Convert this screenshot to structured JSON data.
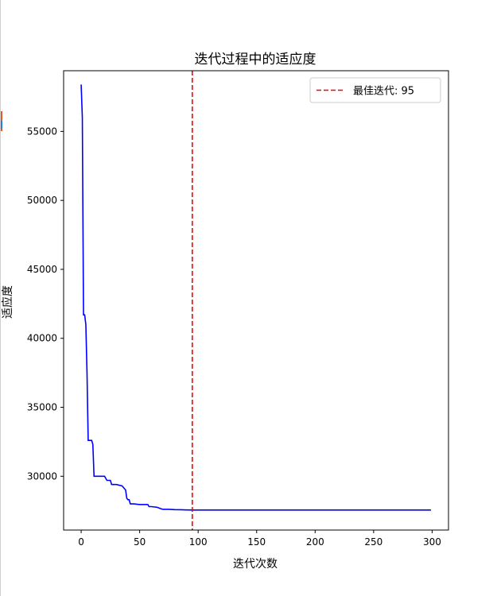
{
  "chart_data": {
    "type": "line",
    "title": "迭代过程中的适应度",
    "xlabel": "迭代次数",
    "ylabel": "适应度",
    "xlim": [
      -15,
      314
    ],
    "ylim": [
      26100,
      59400
    ],
    "x_ticks": [
      0,
      50,
      100,
      150,
      200,
      250,
      300
    ],
    "x_tick_labels": [
      "0",
      "50",
      "100",
      "150",
      "200",
      "250",
      "300"
    ],
    "y_ticks": [
      30000,
      35000,
      40000,
      45000,
      50000,
      55000
    ],
    "y_tick_labels": [
      "30000",
      "35000",
      "40000",
      "45000",
      "50000",
      "55000"
    ],
    "series": [
      {
        "color": "#0000ff",
        "x": [
          0,
          1,
          2,
          3,
          4,
          5,
          6,
          7,
          8,
          9,
          10,
          11,
          12,
          15,
          20,
          22,
          24,
          25,
          26,
          27,
          30,
          35,
          38,
          39,
          40,
          41,
          42,
          43,
          45,
          50,
          55,
          57,
          58,
          60,
          65,
          68,
          70,
          75,
          80,
          85,
          90,
          95,
          100,
          150,
          200,
          250,
          299
        ],
        "values": [
          58400,
          56000,
          41700,
          41700,
          41000,
          37500,
          32600,
          32600,
          32600,
          32600,
          32300,
          30000,
          30000,
          30000,
          30000,
          29700,
          29700,
          29700,
          29400,
          29400,
          29400,
          29300,
          29000,
          28400,
          28300,
          28300,
          28000,
          28000,
          28000,
          27950,
          27950,
          27950,
          27800,
          27800,
          27750,
          27650,
          27600,
          27600,
          27580,
          27570,
          27560,
          27550,
          27550,
          27550,
          27550,
          27550,
          27550
        ]
      }
    ],
    "vline": {
      "x": 95,
      "color": "#ff0000",
      "style": "dashed",
      "label": "最佳迭代: 95"
    },
    "legend": {
      "placement": "top-right",
      "entries": [
        "最佳迭代: 95"
      ]
    },
    "grid": false
  }
}
